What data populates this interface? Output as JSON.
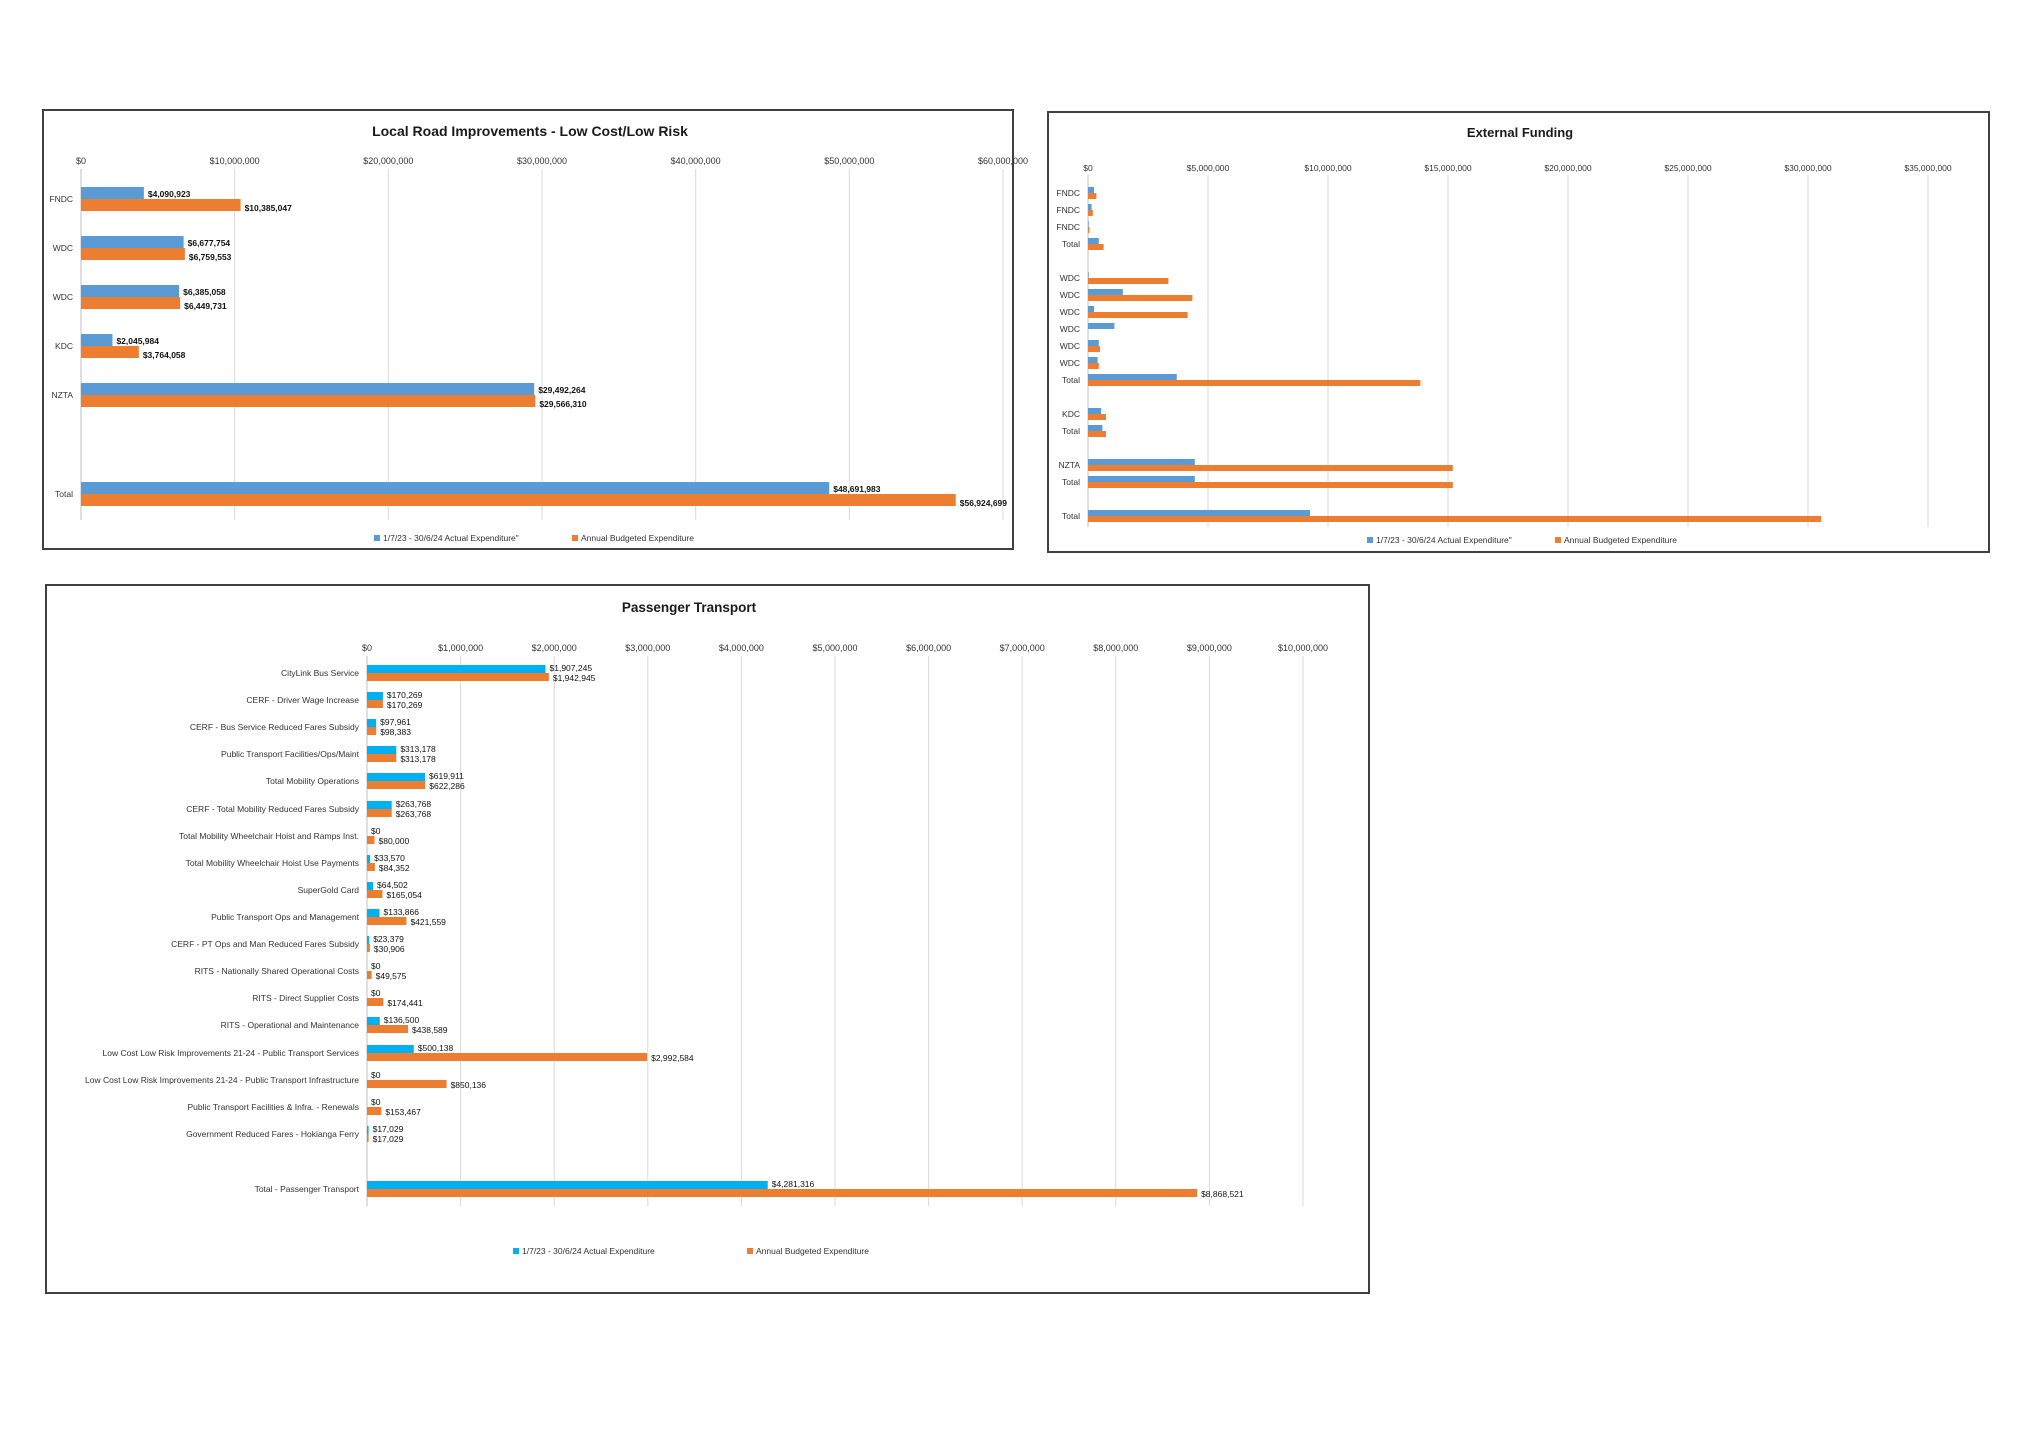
{
  "colors": {
    "actual_blue": "#5b9bd5",
    "budget_orange": "#ed7d31",
    "pt_actual_cyan": "#00b0f0",
    "grid": "#d9d9d9",
    "axis": "#bfbfbf"
  },
  "chart_data": [
    {
      "id": "lri",
      "type": "bar",
      "orientation": "horizontal",
      "title": "Local Road Improvements - Low Cost/Low Risk",
      "xlim": [
        0,
        60000000
      ],
      "xticks": [
        "$0",
        "$10,000,000",
        "$20,000,000",
        "$30,000,000",
        "$40,000,000",
        "$50,000,000",
        "$60,000,000"
      ],
      "xtick_values": [
        0,
        10000000,
        20000000,
        30000000,
        40000000,
        50000000,
        60000000
      ],
      "grid": true,
      "legend_position": "bottom",
      "categories": [
        "FNDC",
        "WDC",
        "WDC",
        "KDC",
        "NZTA",
        "",
        "Total"
      ],
      "series": [
        {
          "name": "1/7/23 - 30/6/24 Actual Expenditure\"",
          "values": [
            4090923,
            6677754,
            6385058,
            2045984,
            29492264,
            null,
            48691983
          ],
          "labels": [
            "$4,090,923",
            "$6,677,754",
            "$6,385,058",
            "$2,045,984",
            "$29,492,264",
            "",
            "$48,691,983"
          ]
        },
        {
          "name": "Annual Budgeted Expenditure",
          "values": [
            10385047,
            6759553,
            6449731,
            3764058,
            29566310,
            null,
            56924699
          ],
          "labels": [
            "$10,385,047",
            "$6,759,553",
            "$6,449,731",
            "$3,764,058",
            "$29,566,310",
            "",
            "$56,924,699"
          ]
        }
      ]
    },
    {
      "id": "ext",
      "type": "bar",
      "orientation": "horizontal",
      "title": "External Funding",
      "xlim": [
        0,
        35000000
      ],
      "xticks": [
        "$0",
        "$5,000,000",
        "$10,000,000",
        "$15,000,000",
        "$20,000,000",
        "$25,000,000",
        "$30,000,000",
        "$35,000,000"
      ],
      "xtick_values": [
        0,
        5000000,
        10000000,
        15000000,
        20000000,
        25000000,
        30000000,
        35000000
      ],
      "grid": true,
      "legend_position": "bottom",
      "categories": [
        "FNDC",
        "FNDC",
        "FNDC",
        "Total",
        "",
        "WDC",
        "WDC",
        "WDC",
        "WDC",
        "WDC",
        "WDC",
        "Total",
        "",
        "KDC",
        "Total",
        "",
        "NZTA",
        "Total",
        "",
        "Total"
      ],
      "series": [
        {
          "name": "1/7/23 - 30/6/24 Actual Expenditure\"",
          "values": [
            250000,
            150000,
            30000,
            450000,
            null,
            30000,
            1450000,
            250000,
            1100000,
            450000,
            400000,
            3700000,
            null,
            550000,
            600000,
            null,
            4450000,
            4450000,
            null,
            9250000
          ]
        },
        {
          "name": "Annual Budgeted Expenditure",
          "values": [
            350000,
            200000,
            60000,
            650000,
            null,
            3350000,
            4350000,
            4150000,
            0,
            500000,
            450000,
            13850000,
            null,
            750000,
            750000,
            null,
            15200000,
            15200000,
            null,
            30550000
          ]
        }
      ]
    },
    {
      "id": "pt",
      "type": "bar",
      "orientation": "horizontal",
      "title": "Passenger Transport",
      "xlim": [
        0,
        10000000
      ],
      "xticks": [
        "$0",
        "$1,000,000",
        "$2,000,000",
        "$3,000,000",
        "$4,000,000",
        "$5,000,000",
        "$6,000,000",
        "$7,000,000",
        "$8,000,000",
        "$9,000,000",
        "$10,000,000"
      ],
      "xtick_values": [
        0,
        1000000,
        2000000,
        3000000,
        4000000,
        5000000,
        6000000,
        7000000,
        8000000,
        9000000,
        10000000
      ],
      "grid": true,
      "legend_position": "bottom",
      "categories": [
        "CityLink Bus Service",
        "CERF - Driver Wage Increase",
        "CERF - Bus Service Reduced Fares Subsidy",
        "Public Transport Facilities/Ops/Maint",
        "Total Mobility Operations",
        "CERF - Total Mobility Reduced Fares Subsidy",
        "Total Mobility Wheelchair Hoist and Ramps Inst.",
        "Total Mobility Wheelchair Hoist Use Payments",
        "SuperGold Card",
        "Public Transport Ops and Management",
        "CERF - PT Ops and Man Reduced Fares Subsidy",
        "RITS - Nationally Shared Operational Costs",
        "RITS - Direct Supplier Costs",
        "RITS - Operational and Maintenance",
        "Low Cost Low Risk Improvements 21-24 - Public Transport Services",
        "Low Cost Low Risk Improvements 21-24 - Public Transport Infrastructure",
        "Public Transport Facilities & Infra. - Renewals",
        "Government Reduced Fares - Hokianga Ferry",
        "",
        "Total - Passenger Transport"
      ],
      "series": [
        {
          "name": "1/7/23 - 30/6/24 Actual Expenditure",
          "values": [
            1907245,
            170269,
            97961,
            313178,
            619911,
            263768,
            0,
            33570,
            64502,
            133866,
            23379,
            0,
            0,
            136500,
            500138,
            0,
            0,
            17029,
            null,
            4281316
          ],
          "labels": [
            "$1,907,245",
            "$170,269",
            "$97,961",
            "$313,178",
            "$619,911",
            "$263,768",
            "$0",
            "$33,570",
            "$64,502",
            "$133,866",
            "$23,379",
            "$0",
            "$0",
            "$136,500",
            "$500,138",
            "$0",
            "$0",
            "$17,029",
            "",
            "$4,281,316"
          ]
        },
        {
          "name": "Annual Budgeted Expenditure",
          "values": [
            1942945,
            170269,
            98383,
            313178,
            622286,
            263768,
            80000,
            84352,
            165054,
            421559,
            30906,
            49575,
            174441,
            438589,
            2992584,
            850136,
            153467,
            17029,
            null,
            8868521
          ],
          "labels": [
            "$1,942,945",
            "$170,269",
            "$98,383",
            "$313,178",
            "$622,286",
            "$263,768",
            "$80,000",
            "$84,352",
            "$165,054",
            "$421,559",
            "$30,906",
            "$49,575",
            "$174,441",
            "$438,589",
            "$2,992,584",
            "$850,136",
            "$153,467",
            "$17,029",
            "",
            "$8,868,521"
          ]
        }
      ]
    }
  ]
}
